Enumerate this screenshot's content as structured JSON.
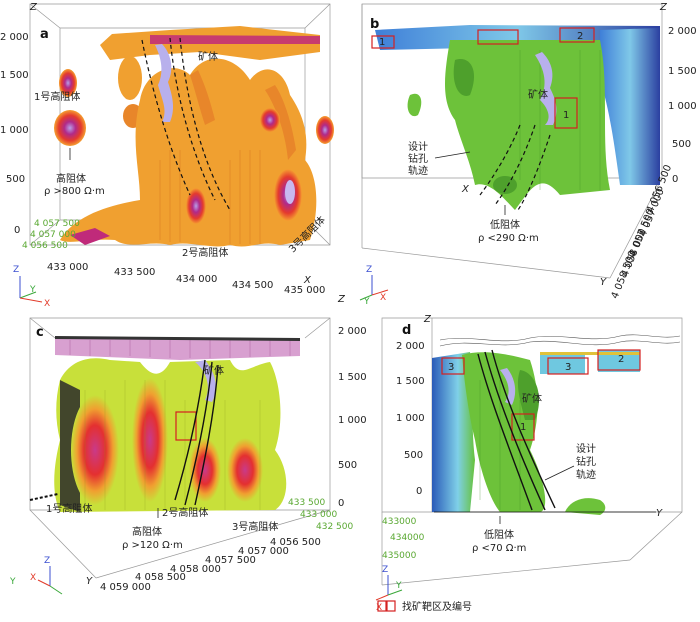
{
  "panels": {
    "a": {
      "letter": "a",
      "z_axis": "Z",
      "z_ticks": [
        "2 000",
        "1 500",
        "1 000",
        "500",
        "0"
      ],
      "y_ticks": [
        "4 057 500",
        "4 057 000",
        "4 056 500"
      ],
      "x_ticks": [
        "433 000",
        "433 500",
        "434 000",
        "434 500",
        "435 000"
      ],
      "x_axis": "X",
      "labels": {
        "body1": "1号高阻体",
        "ore": "矿体",
        "body2": "2号高阻体",
        "body3": "3号高阻体",
        "high_res": "高阻体",
        "rho": "ρ >800 Ω·m"
      },
      "triad": {
        "z": "Z",
        "y": "Y",
        "x": "X"
      }
    },
    "b": {
      "letter": "b",
      "z_axis": "Z",
      "z_ticks": [
        "2 000",
        "1 500",
        "1 000",
        "500",
        "0"
      ],
      "y_ticks": [
        "4 056 500",
        "4 057 000",
        "4 057 500",
        "4 058 000",
        "4 058 500"
      ],
      "y_axis": "Y",
      "x_axis": "X",
      "labels": {
        "ore": "矿体",
        "drill1": "设计",
        "drill2": "钻孔",
        "drill3": "轨迹",
        "low_res": "低阻体",
        "rho": "ρ <290 Ω·m"
      },
      "targets": [
        "1",
        "2",
        "3"
      ],
      "triad": {
        "z": "Z",
        "y": "Y",
        "x": "X"
      }
    },
    "c": {
      "letter": "c",
      "z_axis": "Z",
      "z_ticks": [
        "2 000",
        "1 500",
        "1 000",
        "500",
        "0"
      ],
      "x_ticks": [
        "433 500",
        "433 000",
        "432 500"
      ],
      "y_ticks": [
        "4 056 500",
        "4 057 000",
        "4 057 500",
        "4 058 000",
        "4 058 500",
        "4 059 000"
      ],
      "y_axis": "Y",
      "labels": {
        "ore": "矿体",
        "body1": "1号高阻体",
        "body2": "2号高阻体",
        "body3": "3号高阻体",
        "high_res": "高阻体",
        "rho": "ρ >120 Ω·m"
      },
      "triad": {
        "z": "Z",
        "y": "Y",
        "x": "X"
      }
    },
    "d": {
      "letter": "d",
      "z_axis": "Z",
      "z_ticks": [
        "2 000",
        "1 500",
        "1 000",
        "500",
        "0"
      ],
      "x_ticks": [
        "433000",
        "434000",
        "435000"
      ],
      "y_axis": "Y",
      "labels": {
        "ore": "矿体",
        "drill1": "设计",
        "drill2": "钻孔",
        "drill3": "轨迹",
        "low_res": "低阻体",
        "rho": "ρ <70 Ω·m"
      },
      "targets": [
        "1",
        "2",
        "3"
      ],
      "triad": {
        "z": "Z",
        "y": "Y",
        "x": "X"
      }
    }
  },
  "legend": {
    "text": "找矿靶区及编号"
  },
  "colors": {
    "orange": "#f0a030",
    "green": "#6dc23a",
    "blue": "#3a6fd0",
    "pink": "#d8a0d0",
    "red": "#e23b2a",
    "lav": "#b8b0ec"
  }
}
